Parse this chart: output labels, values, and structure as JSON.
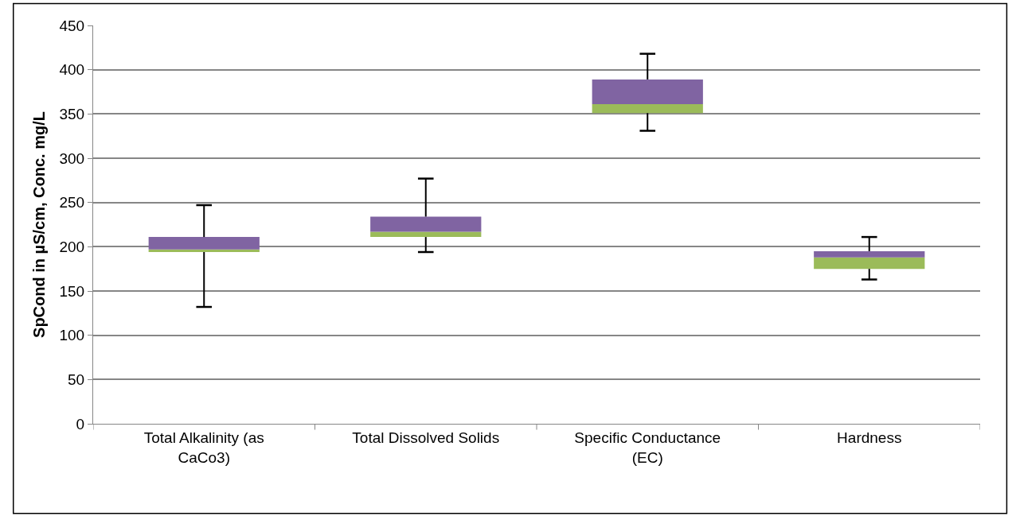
{
  "chart_data": {
    "type": "box",
    "ylabel": "SpCond in µS/cm, Conc. mg/L",
    "categories": [
      "Total Alkalinity (as CaCo3)",
      "Total Dissolved Solids",
      "Specific Conductance (EC)",
      "Hardness"
    ],
    "boxes": [
      {
        "low": 132,
        "q1": 194,
        "median": 197,
        "q3": 211,
        "high": 247
      },
      {
        "low": 194,
        "q1": 211,
        "median": 217,
        "q3": 234,
        "high": 277
      },
      {
        "low": 331,
        "q1": 351,
        "median": 361,
        "q3": 389,
        "high": 418
      },
      {
        "low": 163,
        "q1": 175,
        "median": 188,
        "q3": 195,
        "high": 211
      }
    ],
    "colors": [
      [
        "#9bbb59",
        "#8064a2"
      ],
      [
        "#9bbb59",
        "#8064a2"
      ],
      [
        "#9bbb59",
        "#8064a2"
      ],
      [
        "#9bbb59",
        "#8064a2"
      ]
    ],
    "ylim": [
      0,
      450
    ],
    "yticks": [
      0,
      50,
      100,
      150,
      200,
      250,
      300,
      350,
      400,
      450
    ],
    "grid": "y"
  }
}
